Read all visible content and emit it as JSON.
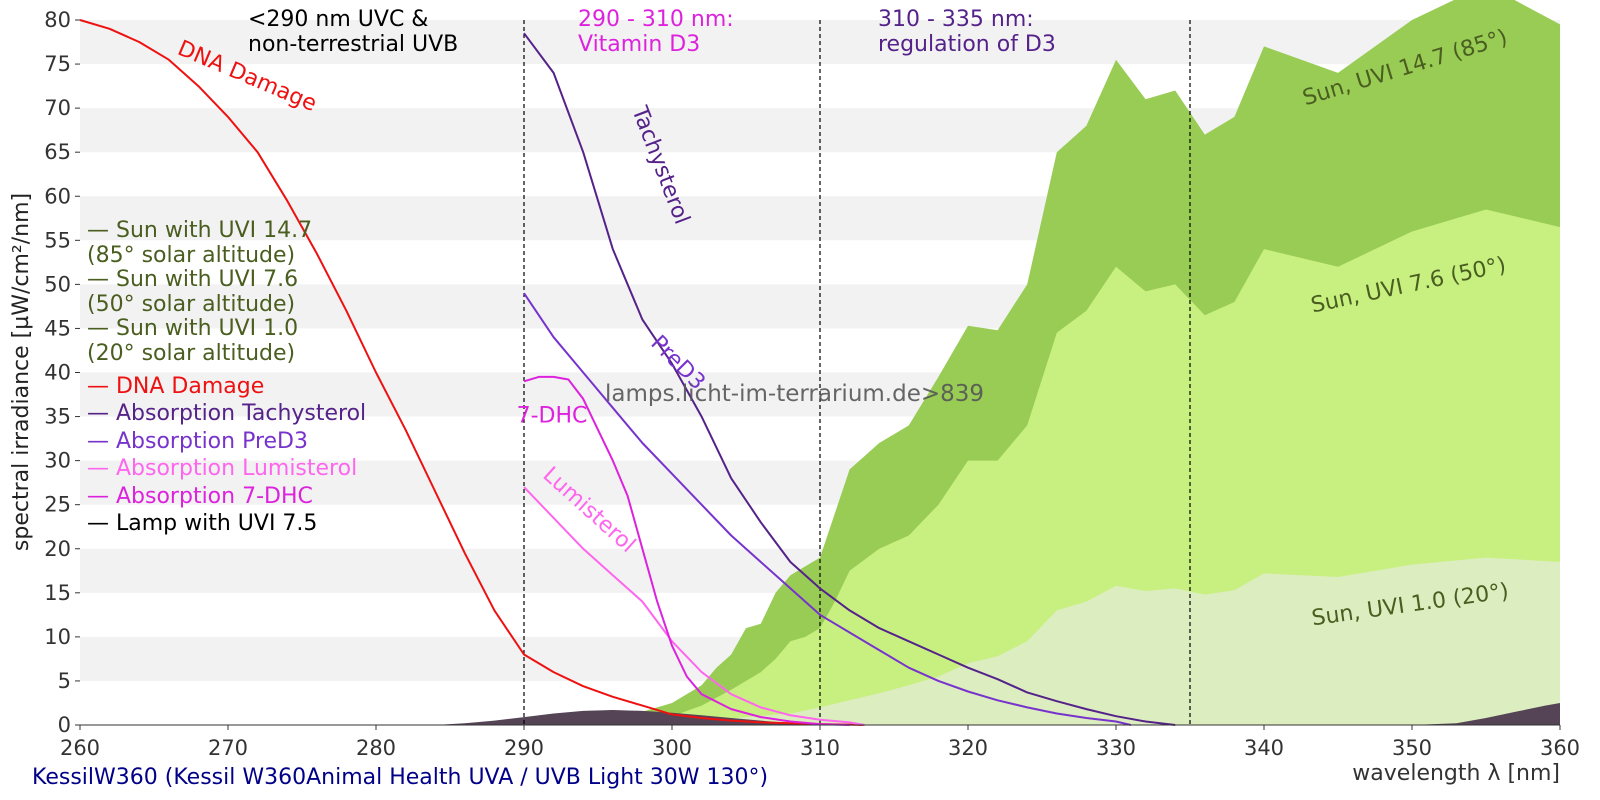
{
  "chart_data": {
    "type": "area",
    "xlabel": "wavelength λ [nm]",
    "ylabel": "spectral irradiance [µW/cm²/nm]",
    "xlim": [
      260,
      360
    ],
    "ylim": [
      0,
      80
    ],
    "x_ticks": [
      260,
      270,
      280,
      290,
      300,
      310,
      320,
      330,
      340,
      350,
      360
    ],
    "y_ticks": [
      0,
      5,
      10,
      15,
      20,
      25,
      30,
      35,
      40,
      45,
      50,
      55,
      60,
      65,
      70,
      75,
      80
    ],
    "grid": "horizontal bands",
    "footer": "KessilW360 (Kessil W360Animal Health UVA / UVB Light 30W 130°)",
    "watermark": "lamps.licht-im-terrarium.de>839",
    "colors": {
      "sun_147": "#99cc55",
      "sun_76": "#c8f080",
      "sun_10": "#dcedc0",
      "lamp": "#554455",
      "dna": "#ee1111",
      "tachysterol": "#55228a",
      "pred3": "#7733cc",
      "lumisterol": "#ff66ee",
      "dhc": "#dd22dd",
      "legend_sun_text": "#4a5e20",
      "band": "#f2f2f2",
      "footer_text": "#000088",
      "watermark_text": "#555555"
    },
    "regions": [
      {
        "x": 290,
        "label_lines": [
          "<290 nm UVC &",
          "non-terrestrial UVB"
        ],
        "color": "#000000"
      },
      {
        "x": 310,
        "label_lines": [
          "290 - 310 nm:",
          "Vitamin D3"
        ],
        "color": "#dd22dd"
      },
      {
        "x": 335,
        "label_lines": [
          "310 - 335 nm:",
          "regulation of D3"
        ],
        "color": "#55228a"
      }
    ],
    "legend": [
      {
        "lines": [
          "— Sun with UVI 14.7",
          "  (85° solar altitude)"
        ],
        "color": "#4a5e20"
      },
      {
        "lines": [
          "— Sun with UVI 7.6",
          "  (50° solar altitude)"
        ],
        "color": "#4a5e20"
      },
      {
        "lines": [
          "— Sun with UVI 1.0",
          "  (20° solar altitude)"
        ],
        "color": "#4a5e20"
      },
      {
        "lines": [
          "— DNA Damage"
        ],
        "color": "#ee1111"
      },
      {
        "lines": [
          "— Absorption Tachysterol"
        ],
        "color": "#55228a"
      },
      {
        "lines": [
          "— Absorption PreD3"
        ],
        "color": "#7733cc"
      },
      {
        "lines": [
          "— Absorption Lumisterol"
        ],
        "color": "#ff66ee"
      },
      {
        "lines": [
          "— Absorption 7-DHC"
        ],
        "color": "#dd22dd"
      },
      {
        "lines": [
          "— Lamp with UVI 7.5"
        ],
        "color": "#000000"
      }
    ],
    "areas": [
      {
        "name": "Sun with UVI 14.7",
        "label": "Sun, UVI 14.7 (85°)",
        "color": "#99cc55",
        "x": [
          290,
          296,
          298,
          300,
          302,
          303,
          304,
          305,
          306,
          307,
          308,
          309,
          310,
          311,
          312,
          313,
          314,
          315,
          316,
          318,
          320,
          322,
          324,
          326,
          328,
          330,
          332,
          334,
          336,
          338,
          340,
          345,
          350,
          355,
          360
        ],
        "y": [
          0,
          0.5,
          1.5,
          2.5,
          4.5,
          6.5,
          8,
          11,
          11.5,
          15,
          17,
          18,
          19,
          24,
          29,
          30.5,
          32,
          33,
          34,
          39.5,
          45.3,
          44.8,
          50,
          65,
          68,
          75.5,
          71,
          72,
          67,
          69,
          77,
          74,
          80,
          84,
          79.5
        ]
      },
      {
        "name": "Sun with UVI 7.6",
        "label": "Sun, UVI 7.6 (50°)",
        "color": "#c8f080",
        "x": [
          290,
          296,
          300,
          302,
          304,
          306,
          307,
          308,
          309,
          310,
          311,
          312,
          314,
          316,
          318,
          320,
          322,
          324,
          326,
          328,
          330,
          332,
          334,
          336,
          338,
          340,
          345,
          350,
          355,
          360
        ],
        "y": [
          0,
          0.3,
          1,
          2.2,
          4,
          6,
          7.5,
          9.5,
          10,
          11,
          14,
          17.5,
          20,
          21.5,
          25,
          30,
          30,
          34,
          44.5,
          47,
          52,
          49.2,
          50,
          46.5,
          48,
          54,
          52,
          56,
          58.5,
          56.5
        ]
      },
      {
        "name": "Sun with UVI 1.0",
        "label": "Sun, UVI 1.0 (20°)",
        "color": "#dcedc0",
        "x": [
          296,
          300,
          305,
          308,
          310,
          312,
          314,
          316,
          318,
          320,
          322,
          324,
          326,
          328,
          330,
          332,
          334,
          336,
          338,
          340,
          345,
          350,
          355,
          360
        ],
        "y": [
          0,
          0.3,
          0.9,
          1.3,
          2,
          2.8,
          3.6,
          4.5,
          5.5,
          7,
          7.8,
          9.5,
          13,
          14,
          15.8,
          15.2,
          15.5,
          14.8,
          15.3,
          17.2,
          16.8,
          18.2,
          19,
          18.5
        ]
      },
      {
        "name": "Lamp with UVI 7.5",
        "label": "",
        "color": "#554455",
        "x": [
          284,
          286,
          288,
          290,
          292,
          294,
          296,
          298,
          300,
          302,
          304,
          306,
          308,
          310,
          312,
          330,
          335,
          345,
          350,
          353,
          355,
          357,
          359,
          360
        ],
        "y": [
          0,
          0.2,
          0.5,
          0.9,
          1.3,
          1.6,
          1.7,
          1.6,
          1.4,
          1.1,
          0.8,
          0.5,
          0.2,
          0.05,
          0,
          0,
          0,
          0,
          0,
          0.2,
          0.8,
          1.5,
          2.2,
          2.5
        ]
      }
    ],
    "lines": [
      {
        "name": "DNA Damage",
        "label": "DNA Damage",
        "color": "#ee1111",
        "x": [
          260,
          262,
          264,
          266,
          268,
          270,
          272,
          274,
          276,
          278,
          280,
          282,
          284,
          286,
          288,
          290,
          292,
          294,
          296,
          298,
          300,
          302,
          304,
          306,
          308,
          310,
          312,
          313
        ],
        "y": [
          80,
          79,
          77.5,
          75.5,
          72.5,
          69,
          65,
          59.5,
          53.5,
          47,
          40,
          33.5,
          26.5,
          19.5,
          13,
          8,
          6,
          4.4,
          3.2,
          2.2,
          1.2,
          0.8,
          0.5,
          0.3,
          0.2,
          0.1,
          0.05,
          0
        ]
      },
      {
        "name": "Absorption Tachysterol",
        "label": "Tachysterol",
        "color": "#55228a",
        "x": [
          290,
          292,
          294,
          296,
          298,
          300,
          302,
          304,
          306,
          308,
          310,
          312,
          314,
          316,
          318,
          320,
          322,
          324,
          326,
          328,
          330,
          332,
          334
        ],
        "y": [
          78.5,
          74,
          65,
          54,
          46,
          41,
          35,
          28,
          23,
          18.5,
          15.5,
          13,
          11,
          9.5,
          8,
          6.5,
          5.2,
          3.7,
          2.7,
          1.8,
          1,
          0.4,
          0
        ]
      },
      {
        "name": "Absorption PreD3",
        "label": "PreD3",
        "color": "#7733cc",
        "x": [
          290,
          292,
          294,
          296,
          298,
          300,
          302,
          304,
          306,
          308,
          310,
          312,
          314,
          316,
          318,
          320,
          322,
          324,
          326,
          328,
          330,
          331
        ],
        "y": [
          49,
          44,
          40,
          36,
          32,
          28.5,
          25,
          21.5,
          18.5,
          15.5,
          12.5,
          10.5,
          8.5,
          6.5,
          5,
          3.8,
          2.8,
          2,
          1.3,
          0.8,
          0.4,
          0
        ]
      },
      {
        "name": "Absorption Lumisterol",
        "label": "Lumisterol",
        "color": "#ff66ee",
        "x": [
          290,
          292,
          294,
          296,
          298,
          300,
          302,
          304,
          306,
          308,
          310,
          312,
          313
        ],
        "y": [
          27,
          23.5,
          20,
          17,
          14,
          9.5,
          6,
          3.5,
          2,
          1.1,
          0.6,
          0.3,
          0
        ]
      },
      {
        "name": "Absorption 7-DHC",
        "label": "7-DHC",
        "color": "#dd22dd",
        "x": [
          290,
          291,
          292,
          293,
          294,
          295,
          296,
          297,
          298,
          299,
          300,
          301,
          302,
          304,
          306,
          308,
          310,
          312
        ],
        "y": [
          39,
          39.5,
          39.5,
          39.2,
          37,
          33.5,
          30,
          26,
          20,
          14,
          9,
          5.5,
          3.5,
          1.8,
          0.9,
          0.4,
          0.1,
          0
        ]
      }
    ]
  }
}
